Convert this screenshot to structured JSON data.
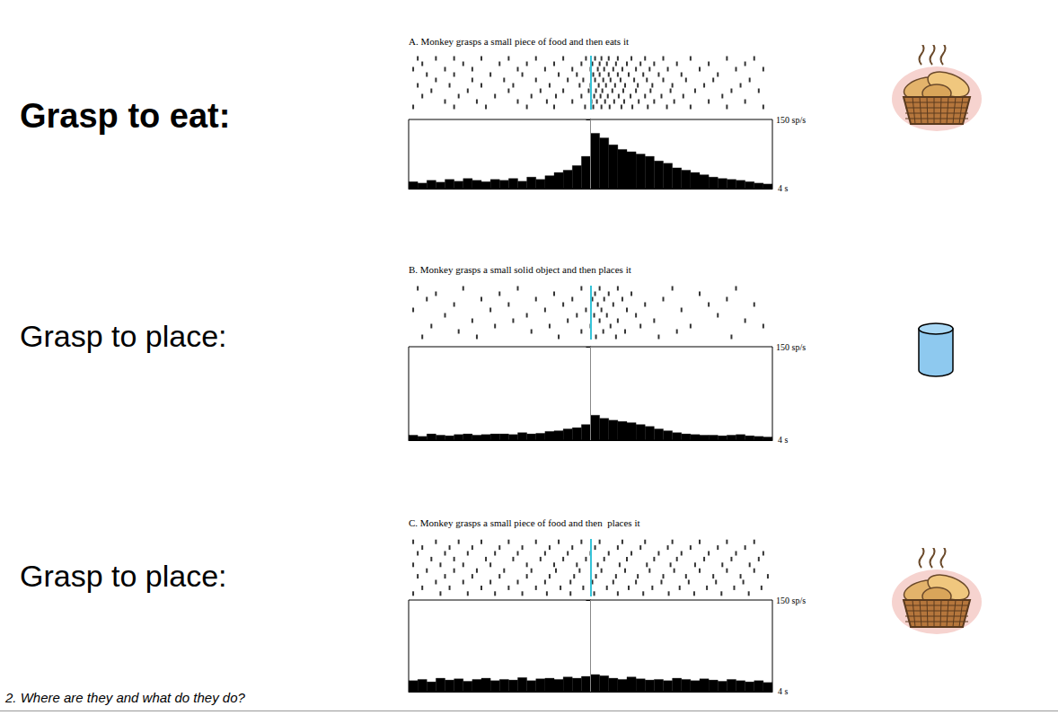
{
  "slide": {
    "row_labels": [
      "Grasp to eat:",
      "Grasp to place:",
      "Grasp to place:"
    ],
    "footer": "2. Where are they and what do they do?"
  },
  "chart_data": [
    {
      "type": "histogram",
      "title": "A. Monkey grasps a small piece of food and then eats it",
      "annotations": [
        "4 s"
      ],
      "xlim": [
        -2,
        2
      ],
      "ylim": [
        0,
        150
      ],
      "yticks": [
        {
          "value": 150,
          "label": "150 sp/s"
        }
      ],
      "tick_labels": "y",
      "grid": false,
      "color": "#000000",
      "alignment": 0,
      "bins": [
        -2,
        -1.9,
        -1.8,
        -1.7,
        -1.6,
        -1.5,
        -1.4,
        -1.3,
        -1.2,
        -1.1,
        -1,
        -0.9,
        -0.8,
        -0.7,
        -0.6,
        -0.5,
        -0.4,
        -0.3,
        -0.2,
        -0.1,
        0,
        0.1,
        0.2,
        0.3,
        0.4,
        0.5,
        0.6,
        0.7,
        0.8,
        0.9,
        1,
        1.1,
        1.2,
        1.3,
        1.4,
        1.5,
        1.6,
        1.7,
        1.8,
        1.9,
        2
      ],
      "counts": [
        15,
        12,
        18,
        14,
        20,
        16,
        22,
        18,
        15,
        20,
        18,
        22,
        16,
        25,
        20,
        28,
        35,
        40,
        50,
        70,
        120,
        110,
        95,
        85,
        80,
        75,
        70,
        60,
        55,
        45,
        40,
        35,
        30,
        25,
        22,
        20,
        18,
        15,
        12,
        10
      ],
      "raster": [
        [
          -1.9,
          -1.7,
          -1.5,
          -1.2,
          -0.9,
          -0.6,
          -0.3,
          -0.05,
          0.05,
          0.12,
          0.2,
          0.3,
          0.45,
          0.6,
          0.8,
          1.1,
          1.5,
          1.8
        ],
        [
          -1.85,
          -1.4,
          -1.0,
          -0.7,
          -0.4,
          -0.1,
          0.02,
          0.1,
          0.18,
          0.28,
          0.4,
          0.55,
          0.7,
          0.95,
          1.3,
          1.7
        ],
        [
          -1.95,
          -1.6,
          -1.3,
          -0.8,
          -0.5,
          -0.2,
          0.0,
          0.08,
          0.15,
          0.25,
          0.35,
          0.5,
          0.65,
          0.85,
          1.2,
          1.6,
          1.9
        ],
        [
          -1.8,
          -1.5,
          -1.1,
          -0.75,
          -0.35,
          -0.15,
          0.03,
          0.1,
          0.2,
          0.3,
          0.42,
          0.58,
          0.75,
          1.0,
          1.4
        ],
        [
          -1.7,
          -1.3,
          -0.95,
          -0.6,
          -0.25,
          -0.08,
          0.05,
          0.14,
          0.22,
          0.33,
          0.48,
          0.62,
          0.8,
          1.05,
          1.35,
          1.75
        ],
        [
          -1.9,
          -1.55,
          -1.2,
          -0.85,
          -0.45,
          -0.12,
          0.0,
          0.09,
          0.17,
          0.27,
          0.38,
          0.52,
          0.68,
          0.9,
          1.25,
          1.65
        ],
        [
          -1.75,
          -1.35,
          -0.9,
          -0.55,
          -0.3,
          -0.02,
          0.06,
          0.13,
          0.24,
          0.36,
          0.5,
          0.66,
          0.88,
          1.15,
          1.55,
          1.85
        ],
        [
          -1.85,
          -1.45,
          -1.05,
          -0.65,
          -0.38,
          -0.1,
          0.04,
          0.11,
          0.19,
          0.31,
          0.44,
          0.6,
          0.78,
          1.02,
          1.45
        ],
        [
          -1.6,
          -1.25,
          -0.8,
          -0.48,
          -0.2,
          0.01,
          0.07,
          0.16,
          0.26,
          0.37,
          0.53,
          0.7,
          0.92,
          1.3,
          1.7
        ],
        [
          -1.95,
          -1.5,
          -1.15,
          -0.7,
          -0.4,
          -0.06,
          0.03,
          0.12,
          0.21,
          0.34,
          0.46,
          0.63,
          0.84,
          1.1,
          1.5,
          1.9
        ]
      ]
    },
    {
      "type": "histogram",
      "title": "B. Monkey grasps a small solid object and then places it",
      "annotations": [
        "4 s"
      ],
      "xlim": [
        -2,
        2
      ],
      "ylim": [
        0,
        150
      ],
      "yticks": [
        {
          "value": 150,
          "label": "150 sp/s"
        }
      ],
      "tick_labels": "y",
      "grid": false,
      "color": "#000000",
      "alignment": 0,
      "bins": [
        -2,
        -1.9,
        -1.8,
        -1.7,
        -1.6,
        -1.5,
        -1.4,
        -1.3,
        -1.2,
        -1.1,
        -1,
        -0.9,
        -0.8,
        -0.7,
        -0.6,
        -0.5,
        -0.4,
        -0.3,
        -0.2,
        -0.1,
        0,
        0.1,
        0.2,
        0.3,
        0.4,
        0.5,
        0.6,
        0.7,
        0.8,
        0.9,
        1,
        1.1,
        1.2,
        1.3,
        1.4,
        1.5,
        1.6,
        1.7,
        1.8,
        1.9,
        2
      ],
      "counts": [
        8,
        6,
        10,
        8,
        7,
        9,
        10,
        8,
        9,
        10,
        10,
        9,
        12,
        10,
        11,
        14,
        15,
        18,
        20,
        25,
        40,
        35,
        32,
        30,
        28,
        25,
        22,
        18,
        15,
        12,
        10,
        9,
        8,
        8,
        7,
        8,
        9,
        7,
        6,
        5
      ],
      "raster": [
        [
          -1.9,
          -1.4,
          -0.8,
          -0.1,
          0.1,
          0.3,
          0.9,
          1.6
        ],
        [
          -1.7,
          -1.0,
          -0.4,
          0.05,
          0.2,
          0.45,
          1.2
        ],
        [
          -1.8,
          -1.2,
          -0.6,
          -0.2,
          0.02,
          0.15,
          0.35,
          0.8,
          1.5
        ],
        [
          -1.5,
          -0.9,
          -0.3,
          0.08,
          0.25,
          0.6,
          1.3,
          1.8
        ],
        [
          -1.95,
          -1.1,
          -0.5,
          -0.05,
          0.12,
          0.4,
          1.0
        ],
        [
          -1.6,
          -0.7,
          -0.15,
          0.04,
          0.18,
          0.5,
          1.4
        ],
        [
          -1.3,
          -0.85,
          -0.25,
          0.1,
          0.3,
          0.7,
          1.7
        ],
        [
          -1.75,
          -1.05,
          -0.45,
          0.0,
          0.22,
          0.55,
          1.1,
          1.9
        ],
        [
          -1.45,
          -0.65,
          -0.1,
          0.14,
          0.38,
          0.95
        ],
        [
          -1.85,
          -1.25,
          -0.35,
          0.06,
          0.28,
          0.75,
          1.55
        ]
      ]
    },
    {
      "type": "histogram",
      "title": "C. Monkey grasps a small piece of food and then  places it",
      "annotations": [
        "4 s"
      ],
      "xlim": [
        -2,
        2
      ],
      "ylim": [
        0,
        150
      ],
      "yticks": [
        {
          "value": 150,
          "label": "150 sp/s"
        }
      ],
      "tick_labels": "y",
      "grid": false,
      "color": "#000000",
      "alignment": 0,
      "bins": [
        -2,
        -1.9,
        -1.8,
        -1.7,
        -1.6,
        -1.5,
        -1.4,
        -1.3,
        -1.2,
        -1.1,
        -1,
        -0.9,
        -0.8,
        -0.7,
        -0.6,
        -0.5,
        -0.4,
        -0.3,
        -0.2,
        -0.1,
        0,
        0.1,
        0.2,
        0.3,
        0.4,
        0.5,
        0.6,
        0.7,
        0.8,
        0.9,
        1,
        1.1,
        1.2,
        1.3,
        1.4,
        1.5,
        1.6,
        1.7,
        1.8,
        1.9,
        2
      ],
      "counts": [
        18,
        20,
        16,
        22,
        19,
        21,
        17,
        20,
        22,
        18,
        20,
        19,
        23,
        18,
        21,
        22,
        20,
        24,
        22,
        25,
        28,
        26,
        22,
        20,
        24,
        21,
        19,
        20,
        18,
        22,
        20,
        18,
        21,
        19,
        17,
        20,
        18,
        16,
        18,
        15
      ],
      "raster": [
        [
          -1.95,
          -1.7,
          -1.45,
          -1.2,
          -0.9,
          -0.6,
          -0.35,
          -0.1,
          0.1,
          0.35,
          0.6,
          0.9,
          1.2,
          1.5,
          1.8
        ],
        [
          -1.85,
          -1.55,
          -1.3,
          -1.0,
          -0.75,
          -0.45,
          -0.2,
          0.05,
          0.3,
          0.55,
          0.85,
          1.1,
          1.4,
          1.7
        ],
        [
          -1.9,
          -1.6,
          -1.35,
          -1.05,
          -0.8,
          -0.5,
          -0.25,
          0.0,
          0.2,
          0.45,
          0.75,
          1.0,
          1.3,
          1.6,
          1.9
        ],
        [
          -1.75,
          -1.5,
          -1.15,
          -0.85,
          -0.55,
          -0.3,
          -0.05,
          0.15,
          0.4,
          0.7,
          0.95,
          1.25,
          1.55,
          1.85
        ],
        [
          -1.95,
          -1.65,
          -1.4,
          -1.1,
          -0.7,
          -0.4,
          -0.15,
          0.08,
          0.32,
          0.62,
          0.88,
          1.15,
          1.45,
          1.75
        ],
        [
          -1.8,
          -1.5,
          -1.25,
          -0.95,
          -0.65,
          -0.38,
          -0.12,
          0.12,
          0.38,
          0.65,
          0.92,
          1.2,
          1.5,
          1.8
        ],
        [
          -1.9,
          -1.6,
          -1.3,
          -1.0,
          -0.7,
          -0.45,
          -0.18,
          0.06,
          0.28,
          0.52,
          0.8,
          1.05,
          1.35,
          1.65,
          1.95
        ],
        [
          -1.7,
          -1.4,
          -1.1,
          -0.8,
          -0.5,
          -0.22,
          0.02,
          0.25,
          0.5,
          0.78,
          1.08,
          1.38,
          1.68
        ],
        [
          -1.85,
          -1.55,
          -1.2,
          -0.9,
          -0.6,
          -0.33,
          -0.08,
          0.18,
          0.42,
          0.68,
          0.98,
          1.28,
          1.58,
          1.88
        ],
        [
          -1.95,
          -1.65,
          -1.35,
          -1.05,
          -0.75,
          -0.48,
          -0.22,
          0.04,
          0.3,
          0.58,
          0.86,
          1.14,
          1.44,
          1.74
        ]
      ]
    }
  ]
}
